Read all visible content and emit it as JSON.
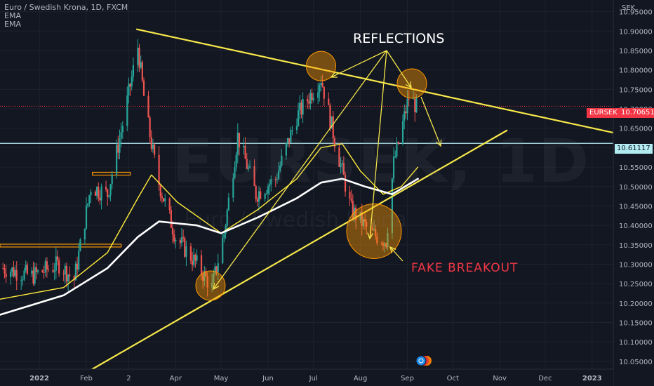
{
  "symbol": {
    "title": "Euro / Swedish Krona, 1D, FXCM",
    "indicators": [
      "EMA",
      "EMA"
    ],
    "currency": "SEK",
    "watermark": "EURSEK, 1D",
    "watermark_sub": "Euro / Swedish Krona"
  },
  "price_tags": {
    "ticker": "EURSEK",
    "last": "10.70651",
    "level": "10.61117"
  },
  "annotations": {
    "reflections": "REFLECTIONS",
    "fake_breakout": "FAKE  BREAKOUT"
  },
  "colors": {
    "background": "#131722",
    "up": "#26a69a",
    "down": "#ef5350",
    "ema_fast": "#ffeb3b",
    "ema_slow": "#ffffff",
    "trendline": "#f7e84a",
    "level_line": "#b2ebf2",
    "last_price": "#f23645",
    "highlight": "#ff9800"
  },
  "chart_data": {
    "type": "candlestick",
    "title": "Euro / Swedish Krona, 1D, FXCM",
    "xlabel": "",
    "ylabel": "",
    "x_ticks": [
      "2022",
      "Feb",
      "2",
      "Apr",
      "May",
      "Jun",
      "Jul",
      "Aug",
      "Sep",
      "Oct",
      "Nov",
      "Dec",
      "2023"
    ],
    "y_ticks": [
      "10.95000",
      "10.90000",
      "10.85000",
      "10.80000",
      "10.75000",
      "10.70000",
      "10.65000",
      "10.60000",
      "10.55000",
      "10.50000",
      "10.45000",
      "10.40000",
      "10.35000",
      "10.30000",
      "10.25000",
      "10.20000",
      "10.15000",
      "10.10000",
      "10.05000"
    ],
    "ylim": [
      10.03,
      10.98
    ],
    "xlim": [
      "2021-12-06",
      "2023-01-15"
    ],
    "close_anchors": [
      {
        "date": "2021-12-08",
        "close": 10.29
      },
      {
        "date": "2021-12-27",
        "close": 10.27
      },
      {
        "date": "2022-01-14",
        "close": 10.3
      },
      {
        "date": "2022-01-24",
        "close": 10.26
      },
      {
        "date": "2022-02-04",
        "close": 10.5
      },
      {
        "date": "2022-02-15",
        "close": 10.48
      },
      {
        "date": "2022-02-25",
        "close": 10.66
      },
      {
        "date": "2022-03-07",
        "close": 10.86
      },
      {
        "date": "2022-03-12",
        "close": 10.7
      },
      {
        "date": "2022-03-20",
        "close": 10.52
      },
      {
        "date": "2022-04-01",
        "close": 10.37
      },
      {
        "date": "2022-04-15",
        "close": 10.3
      },
      {
        "date": "2022-04-25",
        "close": 10.24
      },
      {
        "date": "2022-05-03",
        "close": 10.38
      },
      {
        "date": "2022-05-12",
        "close": 10.63
      },
      {
        "date": "2022-05-24",
        "close": 10.48
      },
      {
        "date": "2022-06-06",
        "close": 10.52
      },
      {
        "date": "2022-06-20",
        "close": 10.68
      },
      {
        "date": "2022-07-06",
        "close": 10.78
      },
      {
        "date": "2022-07-15",
        "close": 10.62
      },
      {
        "date": "2022-07-26",
        "close": 10.44
      },
      {
        "date": "2022-08-08",
        "close": 10.38
      },
      {
        "date": "2022-08-18",
        "close": 10.36
      },
      {
        "date": "2022-08-23",
        "close": 10.56
      },
      {
        "date": "2022-09-02",
        "close": 10.73
      },
      {
        "date": "2022-09-07",
        "close": 10.7065
      }
    ],
    "series": [
      {
        "type": "ema",
        "color": "#ffeb3b",
        "points": [
          {
            "date": "2021-12-06",
            "value": 10.21
          },
          {
            "date": "2022-01-17",
            "value": 10.24
          },
          {
            "date": "2022-02-15",
            "value": 10.33
          },
          {
            "date": "2022-03-07",
            "value": 10.47
          },
          {
            "date": "2022-03-16",
            "value": 10.53
          },
          {
            "date": "2022-04-02",
            "value": 10.46
          },
          {
            "date": "2022-05-01",
            "value": 10.38
          },
          {
            "date": "2022-05-25",
            "value": 10.44
          },
          {
            "date": "2022-06-20",
            "value": 10.52
          },
          {
            "date": "2022-07-06",
            "value": 10.6
          },
          {
            "date": "2022-07-20",
            "value": 10.61
          },
          {
            "date": "2022-08-01",
            "value": 10.54
          },
          {
            "date": "2022-08-16",
            "value": 10.48
          },
          {
            "date": "2022-08-28",
            "value": 10.5
          },
          {
            "date": "2022-09-08",
            "value": 10.55
          }
        ]
      },
      {
        "type": "ema",
        "color": "#ffffff",
        "points": [
          {
            "date": "2021-12-06",
            "value": 10.17
          },
          {
            "date": "2022-01-17",
            "value": 10.22
          },
          {
            "date": "2022-02-15",
            "value": 10.29
          },
          {
            "date": "2022-03-07",
            "value": 10.37
          },
          {
            "date": "2022-03-21",
            "value": 10.41
          },
          {
            "date": "2022-04-15",
            "value": 10.4
          },
          {
            "date": "2022-05-01",
            "value": 10.38
          },
          {
            "date": "2022-05-25",
            "value": 10.42
          },
          {
            "date": "2022-06-20",
            "value": 10.47
          },
          {
            "date": "2022-07-06",
            "value": 10.51
          },
          {
            "date": "2022-07-20",
            "value": 10.52
          },
          {
            "date": "2022-08-04",
            "value": 10.5
          },
          {
            "date": "2022-08-22",
            "value": 10.48
          },
          {
            "date": "2022-09-08",
            "value": 10.52
          }
        ]
      }
    ],
    "trendlines": [
      {
        "name": "descending",
        "from": {
          "date": "2022-03-06",
          "value": 10.905
        },
        "to": {
          "date": "2023-01-18",
          "value": 10.636
        }
      },
      {
        "name": "ascending",
        "from": {
          "date": "2022-01-27",
          "value": 10.01
        },
        "to": {
          "date": "2022-11-06",
          "value": 10.645
        }
      }
    ],
    "horizontal_levels": [
      {
        "value": 10.61117,
        "color": "#b2ebf2"
      },
      {
        "value": 10.70651,
        "color": "#f23645",
        "style": "dotted"
      }
    ],
    "zones": [
      {
        "value": 10.348,
        "from": "2021-12-06",
        "to": "2022-02-24",
        "color": "#ff9800"
      },
      {
        "value": 10.533,
        "from": "2022-02-05",
        "to": "2022-03-02",
        "color": "#ff9800"
      }
    ],
    "highlights": [
      {
        "date": "2022-07-06",
        "value": 10.81,
        "label": "reflection"
      },
      {
        "date": "2022-04-24",
        "value": 10.245,
        "label": "reflection"
      },
      {
        "date": "2022-09-04",
        "value": 10.765,
        "label": "reflection"
      },
      {
        "date": "2022-08-10",
        "value": 10.385,
        "label": "fake breakout"
      }
    ],
    "legend": "none",
    "grid": true
  }
}
